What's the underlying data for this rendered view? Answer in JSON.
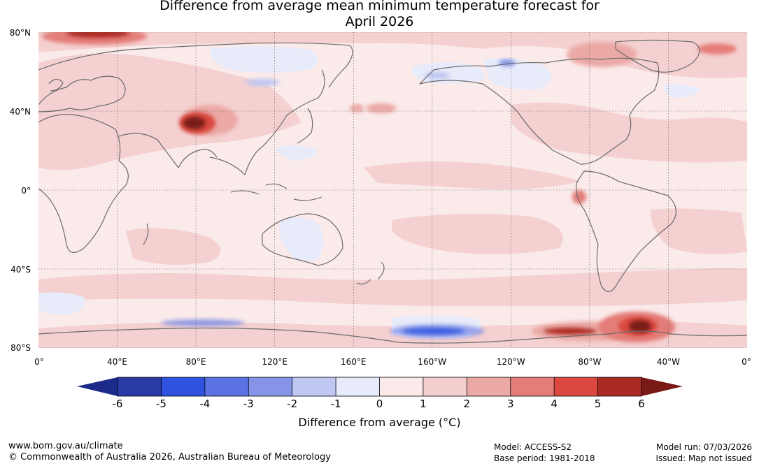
{
  "title": {
    "line1": "Difference from average mean minimum temperature forecast for",
    "line2": "April 2026"
  },
  "map": {
    "lat_labels": [
      "80°N",
      "40°N",
      "0°",
      "40°S",
      "80°S"
    ],
    "lon_labels": [
      "0°",
      "40°E",
      "80°E",
      "120°E",
      "160°E",
      "160°W",
      "120°W",
      "80°W",
      "40°W",
      "0°"
    ],
    "anomaly_regions": [
      {
        "name": "tibetan-plateau-warm",
        "lon": 81,
        "lat": 35,
        "value": 6
      },
      {
        "name": "south-america-antarctic-warm",
        "lon": -57,
        "lat": -70,
        "value": 6
      },
      {
        "name": "west-antarctic-warm",
        "lon": -87,
        "lat": -72,
        "value": 5
      },
      {
        "name": "northern-europe-arctic-warm",
        "lon": 28,
        "lat": 79,
        "value": 5
      },
      {
        "name": "ross-sea-cool",
        "lon": -170,
        "lat": -72,
        "value": -3
      },
      {
        "name": "antarctic-indian-cool",
        "lon": 80,
        "lat": -68,
        "value": -2
      },
      {
        "name": "siberia-cool",
        "lon": 115,
        "lat": 62,
        "value": -1
      },
      {
        "name": "alaska-cool",
        "lon": -145,
        "lat": 65,
        "value": -1
      }
    ]
  },
  "colorbar": {
    "ticks": [
      "-6",
      "-5",
      "-4",
      "-3",
      "-2",
      "-1",
      "0",
      "1",
      "2",
      "3",
      "4",
      "5",
      "6"
    ],
    "colors": [
      "#2a3ba5",
      "#2f52e0",
      "#5a72e2",
      "#8594e6",
      "#bfc7f2",
      "#e8ebfa",
      "#fbeaea",
      "#f4cfcf",
      "#eba9a5",
      "#e47d78",
      "#da4840",
      "#ab2a24"
    ],
    "under_color": "#1c2a8a",
    "over_color": "#7a1a16",
    "label": "Difference from average (°C)"
  },
  "footer": {
    "url": "www.bom.gov.au/climate",
    "copyright": "© Commonwealth of Australia 2026, Australian Bureau of Meteorology",
    "model": "Model: ACCESS-S2",
    "base_period": "Base period: 1981-2018",
    "model_run": "Model run: 07/03/2026",
    "issued": "Issued: Map not issued"
  }
}
